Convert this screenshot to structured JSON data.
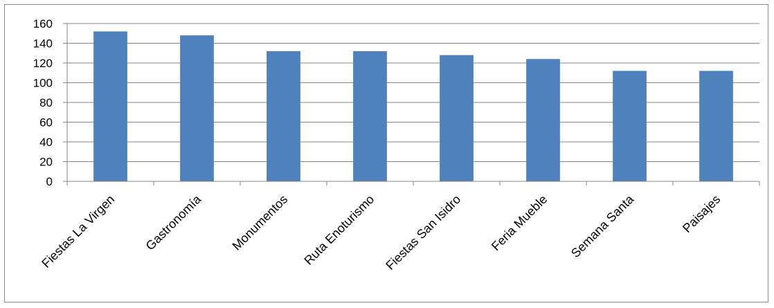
{
  "chart_data": {
    "type": "bar",
    "title": "",
    "xlabel": "",
    "ylabel": "",
    "categories": [
      "Fiestas La Virgen",
      "Gastronomía",
      "Monumentos",
      "Ruta Enoturismo",
      "Fiestas San Isidro",
      "Feria Mueble",
      "Semana Santa",
      "Paisajes"
    ],
    "series": [
      {
        "values": [
          152,
          148,
          132,
          132,
          128,
          124,
          112,
          112
        ],
        "color": "#4f81bd"
      }
    ],
    "ylim": [
      0,
      160
    ],
    "yticks": [
      "0",
      "20",
      "40",
      "60",
      "80",
      "100",
      "120",
      "140",
      "160"
    ],
    "grid": true,
    "legend": "none"
  }
}
